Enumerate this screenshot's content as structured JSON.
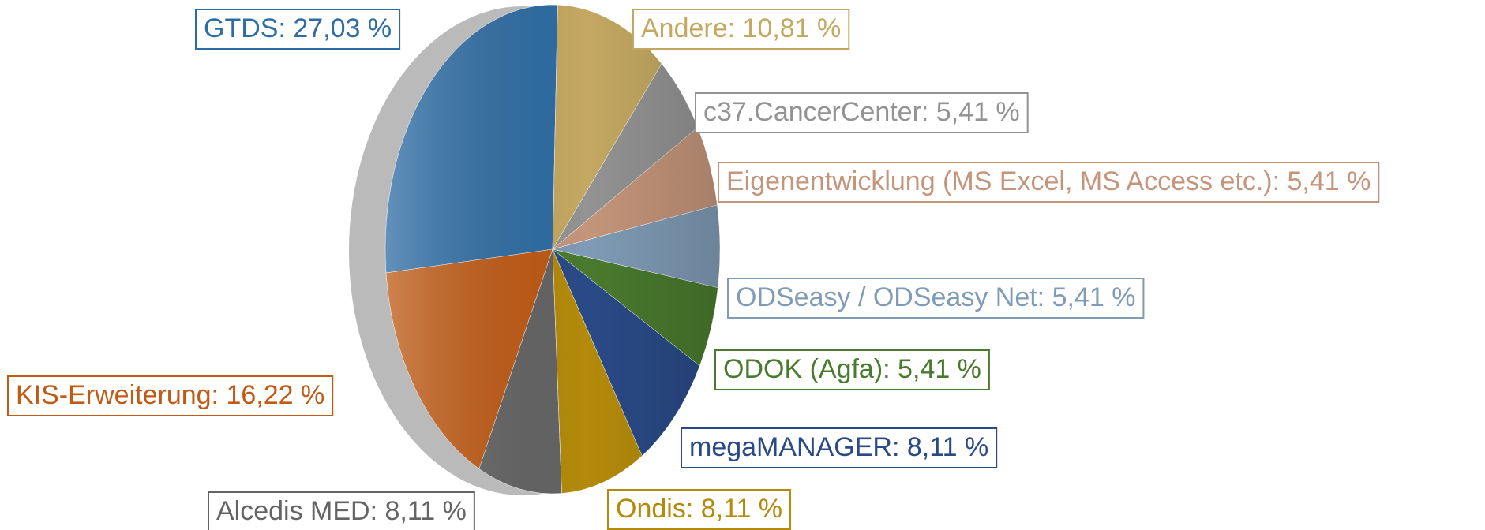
{
  "chart_data": {
    "type": "pie",
    "values": [
      27.03,
      16.22,
      8.11,
      8.11,
      8.11,
      5.41,
      5.41,
      5.41,
      5.41,
      10.81
    ],
    "value_labels": [
      "GTDS: 27,03 %",
      "KIS-Erweiterung: 16,22 %",
      "Alcedis MED: 8,11 %",
      "Ondis: 8,11 %",
      "megaMANAGER: 8,11 %",
      "ODOK (Agfa): 5,41 %",
      "ODSeasy / ODSeasy Net: 5,41 %",
      "Eigenentwicklung (MS Excel, MS Access etc.): 5,41 %",
      "c37.CancerCenter: 5,41 %",
      "Andere: 10,81 %"
    ],
    "colors": [
      "#2e6da4",
      "#c05a14",
      "#646464",
      "#b38a0a",
      "#2a4a87",
      "#4a7a2e",
      "#7f9bb5",
      "#c4957a",
      "#939393",
      "#c4a862"
    ],
    "direction": "counterclockwise"
  }
}
